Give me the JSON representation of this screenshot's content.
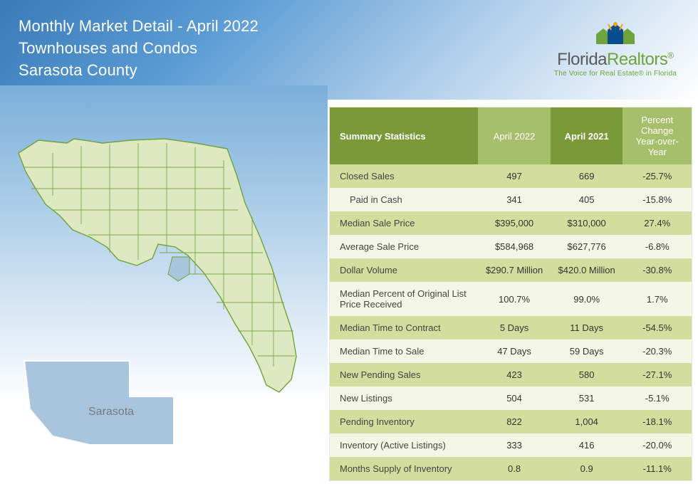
{
  "header": {
    "line1": "Monthly Market Detail - April 2022",
    "line2": "Townhouses and Condos",
    "line3": "Sarasota County"
  },
  "logo": {
    "brand_a": "Florida",
    "brand_b": "Realtors",
    "reg": "®",
    "tagline": "The Voice for Real Estate® in Florida"
  },
  "map": {
    "county_label": "Sarasota",
    "state_fill": "#dfe9c1",
    "state_stroke": "#6fa33b",
    "county_fill": "#a9c4dd",
    "county_stroke": "#ffffff"
  },
  "table": {
    "columns": {
      "name": "Summary Statistics",
      "c1": "April 2022",
      "c2": "April 2021",
      "c3_l1": "Percent Change",
      "c3_l2": "Year-over-Year"
    },
    "rows": [
      {
        "label": "Closed Sales",
        "v1": "497",
        "v2": "669",
        "pct": "-25.7%",
        "indent": false
      },
      {
        "label": "Paid in Cash",
        "v1": "341",
        "v2": "405",
        "pct": "-15.8%",
        "indent": true
      },
      {
        "label": "Median Sale Price",
        "v1": "$395,000",
        "v2": "$310,000",
        "pct": "27.4%",
        "indent": false
      },
      {
        "label": "Average Sale Price",
        "v1": "$584,968",
        "v2": "$627,776",
        "pct": "-6.8%",
        "indent": false
      },
      {
        "label": "Dollar Volume",
        "v1": "$290.7 Million",
        "v2": "$420.0 Million",
        "pct": "-30.8%",
        "indent": false
      },
      {
        "label": "Median Percent of Original List Price Received",
        "v1": "100.7%",
        "v2": "99.0%",
        "pct": "1.7%",
        "indent": false
      },
      {
        "label": "Median Time to Contract",
        "v1": "5 Days",
        "v2": "11 Days",
        "pct": "-54.5%",
        "indent": false
      },
      {
        "label": "Median Time to Sale",
        "v1": "47 Days",
        "v2": "59 Days",
        "pct": "-20.3%",
        "indent": false
      },
      {
        "label": "New Pending Sales",
        "v1": "423",
        "v2": "580",
        "pct": "-27.1%",
        "indent": false
      },
      {
        "label": "New Listings",
        "v1": "504",
        "v2": "531",
        "pct": "-5.1%",
        "indent": false
      },
      {
        "label": "Pending Inventory",
        "v1": "822",
        "v2": "1,004",
        "pct": "-18.1%",
        "indent": false
      },
      {
        "label": "Inventory (Active Listings)",
        "v1": "333",
        "v2": "416",
        "pct": "-20.0%",
        "indent": false
      },
      {
        "label": "Months Supply of Inventory",
        "v1": "0.8",
        "v2": "0.9",
        "pct": "-11.1%",
        "indent": false
      }
    ],
    "colors": {
      "hdr_main_bg": "#7a9a3a",
      "hdr_alt_bg": "#a5bf6a",
      "row_odd_bg": "#d3de9e",
      "row_even_bg": "#f4f7e6"
    }
  }
}
